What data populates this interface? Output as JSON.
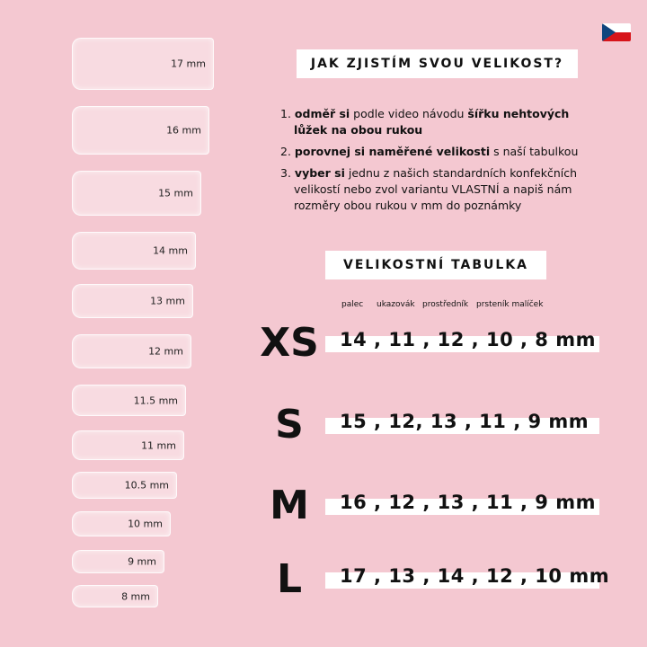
{
  "flag_icon": "czech-flag",
  "nails": [
    "17 mm",
    "16 mm",
    "15 mm",
    "14 mm",
    "13 mm",
    "12 mm",
    "11.5 mm",
    "11 mm",
    "10.5 mm",
    "10 mm",
    "9 mm",
    "8 mm"
  ],
  "how_title": "JAK ZJISTÍM SVOU VELIKOST?",
  "steps": [
    {
      "num": "1.",
      "b1": "odměř si",
      "t1": " podle video návodu ",
      "b2": "šířku nehtových lůžek na obou rukou",
      "t2": ""
    },
    {
      "num": "2.",
      "b1": "porovnej si naměřené velikosti",
      "t1": " s naší tabulkou",
      "b2": "",
      "t2": ""
    },
    {
      "num": "3.",
      "b1": "vyber si",
      "t1": " jednu z našich standardních konfekčních velikostí nebo zvol variantu VLASTNÍ a napiš nám rozměry obou rukou v mm do poznámky",
      "b2": "",
      "t2": ""
    }
  ],
  "table_title": "VELIKOSTNÍ TABULKA",
  "fingers": [
    "palec",
    "ukazovák",
    "prostředník",
    "prsteník malíček"
  ],
  "sizes": [
    {
      "label": "XS",
      "values": "14 , 11 , 12 , 10 , 8 mm"
    },
    {
      "label": "S",
      "values": "15 , 12, 13 , 11 , 9 mm"
    },
    {
      "label": "M",
      "values": "16 , 12 , 13 , 11 , 9 mm"
    },
    {
      "label": "L",
      "values": "17 , 13 , 14 , 12 , 10 mm"
    }
  ]
}
